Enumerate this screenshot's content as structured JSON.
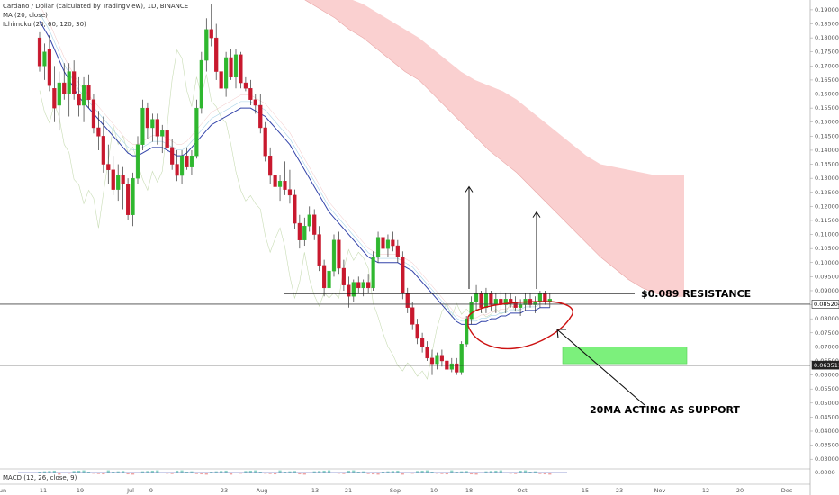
{
  "header": {
    "title": "Cardano / Dollar (calculated by TradingView), 1D, BINANCE",
    "ma_label": "MA (20, close)",
    "ichimoku_label": "Ichimoku (20, 60, 120, 30)",
    "macd_label": "MACD (12, 26, close, 9)"
  },
  "chart_data": {
    "type": "candlestick",
    "y_ticks": [
      "0.190000",
      "0.185000",
      "0.180000",
      "0.175000",
      "0.170000",
      "0.165000",
      "0.160000",
      "0.155000",
      "0.150000",
      "0.145000",
      "0.140000",
      "0.135000",
      "0.130000",
      "0.125000",
      "0.120000",
      "0.115000",
      "0.110000",
      "0.105000",
      "0.100000",
      "0.095000",
      "0.090000",
      "0.085000",
      "0.080000",
      "0.075000",
      "0.070000",
      "0.065000",
      "0.060000",
      "0.055000",
      "0.050000",
      "0.045000",
      "0.040000",
      "0.035000",
      "0.030000"
    ],
    "macd_tick": "0.0000",
    "x_ticks": [
      "Jun",
      "11",
      "19",
      "Jul",
      "9",
      "23",
      "Aug",
      "13",
      "21",
      "Sep",
      "10",
      "18",
      "Oct",
      "15",
      "23",
      "Nov",
      "12",
      "20",
      "Dec"
    ],
    "ylim": [
      0.0275,
      0.1935
    ],
    "price_tags": [
      {
        "label": "0.085204",
        "value": 0.0852
      },
      {
        "label": "0.063511",
        "value": 0.0635
      }
    ],
    "annotations": {
      "resistance_text": "$0.089 RESISTANCE",
      "support_text": "20MA ACTING AS SUPPORT",
      "resistance_value": 0.089,
      "current_price_value": 0.0852,
      "support_level_value": 0.0635,
      "target_zone": [
        0.064,
        0.07
      ]
    },
    "candles": [
      [
        0.18,
        0.182,
        0.168,
        0.17
      ],
      [
        0.17,
        0.178,
        0.165,
        0.175
      ],
      [
        0.176,
        0.181,
        0.161,
        0.163
      ],
      [
        0.162,
        0.17,
        0.15,
        0.155
      ],
      [
        0.156,
        0.168,
        0.147,
        0.164
      ],
      [
        0.164,
        0.171,
        0.158,
        0.16
      ],
      [
        0.16,
        0.171,
        0.152,
        0.168
      ],
      [
        0.168,
        0.172,
        0.158,
        0.16
      ],
      [
        0.16,
        0.166,
        0.152,
        0.156
      ],
      [
        0.156,
        0.166,
        0.15,
        0.163
      ],
      [
        0.163,
        0.167,
        0.155,
        0.158
      ],
      [
        0.158,
        0.16,
        0.146,
        0.148
      ],
      [
        0.148,
        0.154,
        0.14,
        0.145
      ],
      [
        0.145,
        0.152,
        0.132,
        0.135
      ],
      [
        0.135,
        0.142,
        0.128,
        0.133
      ],
      [
        0.133,
        0.138,
        0.124,
        0.126
      ],
      [
        0.126,
        0.135,
        0.122,
        0.131
      ],
      [
        0.131,
        0.134,
        0.119,
        0.128
      ],
      [
        0.128,
        0.13,
        0.115,
        0.117
      ],
      [
        0.117,
        0.132,
        0.113,
        0.13
      ],
      [
        0.13,
        0.145,
        0.128,
        0.142
      ],
      [
        0.142,
        0.158,
        0.14,
        0.155
      ],
      [
        0.155,
        0.157,
        0.144,
        0.148
      ],
      [
        0.148,
        0.153,
        0.143,
        0.151
      ],
      [
        0.151,
        0.153,
        0.142,
        0.145
      ],
      [
        0.145,
        0.149,
        0.139,
        0.147
      ],
      [
        0.147,
        0.15,
        0.139,
        0.141
      ],
      [
        0.141,
        0.144,
        0.133,
        0.135
      ],
      [
        0.135,
        0.14,
        0.129,
        0.131
      ],
      [
        0.131,
        0.14,
        0.128,
        0.138
      ],
      [
        0.138,
        0.141,
        0.133,
        0.134
      ],
      [
        0.134,
        0.14,
        0.131,
        0.138
      ],
      [
        0.138,
        0.158,
        0.137,
        0.155
      ],
      [
        0.155,
        0.175,
        0.153,
        0.172
      ],
      [
        0.172,
        0.187,
        0.168,
        0.183
      ],
      [
        0.183,
        0.192,
        0.177,
        0.18
      ],
      [
        0.18,
        0.185,
        0.165,
        0.168
      ],
      [
        0.168,
        0.174,
        0.16,
        0.162
      ],
      [
        0.162,
        0.175,
        0.159,
        0.173
      ],
      [
        0.173,
        0.176,
        0.165,
        0.166
      ],
      [
        0.166,
        0.176,
        0.162,
        0.174
      ],
      [
        0.174,
        0.175,
        0.162,
        0.164
      ],
      [
        0.164,
        0.166,
        0.161,
        0.162
      ],
      [
        0.162,
        0.165,
        0.156,
        0.158
      ],
      [
        0.158,
        0.16,
        0.153,
        0.156
      ],
      [
        0.156,
        0.16,
        0.146,
        0.148
      ],
      [
        0.148,
        0.15,
        0.136,
        0.138
      ],
      [
        0.138,
        0.141,
        0.128,
        0.131
      ],
      [
        0.131,
        0.133,
        0.123,
        0.127
      ],
      [
        0.127,
        0.131,
        0.122,
        0.129
      ],
      [
        0.129,
        0.136,
        0.124,
        0.126
      ],
      [
        0.126,
        0.133,
        0.121,
        0.124
      ],
      [
        0.124,
        0.126,
        0.112,
        0.114
      ],
      [
        0.114,
        0.117,
        0.105,
        0.108
      ],
      [
        0.108,
        0.116,
        0.106,
        0.113
      ],
      [
        0.113,
        0.12,
        0.111,
        0.117
      ],
      [
        0.117,
        0.119,
        0.108,
        0.11
      ],
      [
        0.11,
        0.113,
        0.097,
        0.099
      ],
      [
        0.099,
        0.101,
        0.088,
        0.091
      ],
      [
        0.091,
        0.1,
        0.086,
        0.097
      ],
      [
        0.097,
        0.11,
        0.095,
        0.108
      ],
      [
        0.108,
        0.111,
        0.096,
        0.098
      ],
      [
        0.098,
        0.101,
        0.09,
        0.092
      ],
      [
        0.092,
        0.095,
        0.084,
        0.088
      ],
      [
        0.088,
        0.094,
        0.086,
        0.093
      ],
      [
        0.093,
        0.095,
        0.089,
        0.091
      ],
      [
        0.091,
        0.094,
        0.088,
        0.093
      ],
      [
        0.093,
        0.096,
        0.089,
        0.091
      ],
      [
        0.091,
        0.104,
        0.09,
        0.102
      ],
      [
        0.102,
        0.111,
        0.1,
        0.109
      ],
      [
        0.109,
        0.111,
        0.103,
        0.105
      ],
      [
        0.105,
        0.11,
        0.102,
        0.108
      ],
      [
        0.108,
        0.111,
        0.104,
        0.106
      ],
      [
        0.106,
        0.108,
        0.1,
        0.102
      ],
      [
        0.102,
        0.104,
        0.087,
        0.089
      ],
      [
        0.089,
        0.091,
        0.082,
        0.084
      ],
      [
        0.084,
        0.086,
        0.076,
        0.078
      ],
      [
        0.078,
        0.08,
        0.071,
        0.073
      ],
      [
        0.073,
        0.075,
        0.068,
        0.07
      ],
      [
        0.07,
        0.072,
        0.065,
        0.066
      ],
      [
        0.066,
        0.069,
        0.06,
        0.064
      ],
      [
        0.064,
        0.068,
        0.062,
        0.067
      ],
      [
        0.067,
        0.069,
        0.063,
        0.065
      ],
      [
        0.065,
        0.067,
        0.061,
        0.062
      ],
      [
        0.062,
        0.066,
        0.061,
        0.064
      ],
      [
        0.064,
        0.066,
        0.06,
        0.061
      ],
      [
        0.061,
        0.072,
        0.06,
        0.071
      ],
      [
        0.071,
        0.081,
        0.07,
        0.08
      ],
      [
        0.08,
        0.088,
        0.078,
        0.086
      ],
      [
        0.086,
        0.092,
        0.083,
        0.089
      ],
      [
        0.089,
        0.09,
        0.082,
        0.084
      ],
      [
        0.084,
        0.091,
        0.082,
        0.089
      ],
      [
        0.089,
        0.09,
        0.083,
        0.085
      ],
      [
        0.085,
        0.089,
        0.082,
        0.087
      ],
      [
        0.087,
        0.09,
        0.083,
        0.085
      ],
      [
        0.085,
        0.089,
        0.082,
        0.087
      ],
      [
        0.087,
        0.089,
        0.084,
        0.086
      ],
      [
        0.086,
        0.088,
        0.083,
        0.084
      ],
      [
        0.084,
        0.087,
        0.081,
        0.085
      ],
      [
        0.085,
        0.089,
        0.083,
        0.087
      ],
      [
        0.087,
        0.089,
        0.084,
        0.085
      ],
      [
        0.085,
        0.088,
        0.082,
        0.086
      ],
      [
        0.086,
        0.09,
        0.084,
        0.089
      ],
      [
        0.089,
        0.09,
        0.085,
        0.086
      ],
      [
        0.086,
        0.089,
        0.084,
        0.087
      ]
    ],
    "ma20": [
      0.186,
      0.183,
      0.18,
      0.176,
      0.172,
      0.168,
      0.165,
      0.162,
      0.159,
      0.157,
      0.155,
      0.153,
      0.151,
      0.149,
      0.147,
      0.145,
      0.143,
      0.141,
      0.139,
      0.138,
      0.138,
      0.139,
      0.14,
      0.141,
      0.141,
      0.141,
      0.14,
      0.139,
      0.138,
      0.138,
      0.139,
      0.141,
      0.143,
      0.145,
      0.147,
      0.149,
      0.15,
      0.151,
      0.152,
      0.153,
      0.154,
      0.155,
      0.155,
      0.155,
      0.154,
      0.153,
      0.152,
      0.15,
      0.148,
      0.146,
      0.144,
      0.142,
      0.139,
      0.136,
      0.133,
      0.13,
      0.127,
      0.124,
      0.121,
      0.118,
      0.116,
      0.114,
      0.112,
      0.11,
      0.108,
      0.106,
      0.104,
      0.102,
      0.101,
      0.1,
      0.1,
      0.1,
      0.1,
      0.1,
      0.099,
      0.098,
      0.097,
      0.095,
      0.093,
      0.091,
      0.089,
      0.087,
      0.085,
      0.083,
      0.081,
      0.079,
      0.078,
      0.078,
      0.078,
      0.078,
      0.079,
      0.079,
      0.08,
      0.08,
      0.081,
      0.081,
      0.082,
      0.082,
      0.082,
      0.083,
      0.083,
      0.083,
      0.084,
      0.084,
      0.084
    ],
    "cloud_top": [
      0.199,
      0.199,
      0.199,
      0.198,
      0.197,
      0.196,
      0.194,
      0.192,
      0.189,
      0.186,
      0.183,
      0.18,
      0.176,
      0.172,
      0.168,
      0.165,
      0.163,
      0.161,
      0.158,
      0.154,
      0.15,
      0.146,
      0.142,
      0.138,
      0.135,
      0.134,
      0.133,
      0.132,
      0.131,
      0.131,
      0.131
    ],
    "cloud_bottom": [
      0.199,
      0.199,
      0.196,
      0.193,
      0.19,
      0.187,
      0.183,
      0.18,
      0.176,
      0.172,
      0.168,
      0.165,
      0.16,
      0.155,
      0.15,
      0.145,
      0.14,
      0.136,
      0.132,
      0.127,
      0.122,
      0.117,
      0.112,
      0.107,
      0.102,
      0.098,
      0.094,
      0.091,
      0.089,
      0.088,
      0.088
    ],
    "target_arrows": [
      {
        "from_value": 0.09,
        "to_value": 0.127
      },
      {
        "from_value": 0.09,
        "to_value": 0.118
      }
    ],
    "colors": {
      "up": "#2fb72f",
      "down": "#c8192e",
      "ma": "#3344aa",
      "cloud": "#f8c0c0",
      "target_box": "#7cf07c",
      "ellipse": "#cc1111"
    }
  }
}
